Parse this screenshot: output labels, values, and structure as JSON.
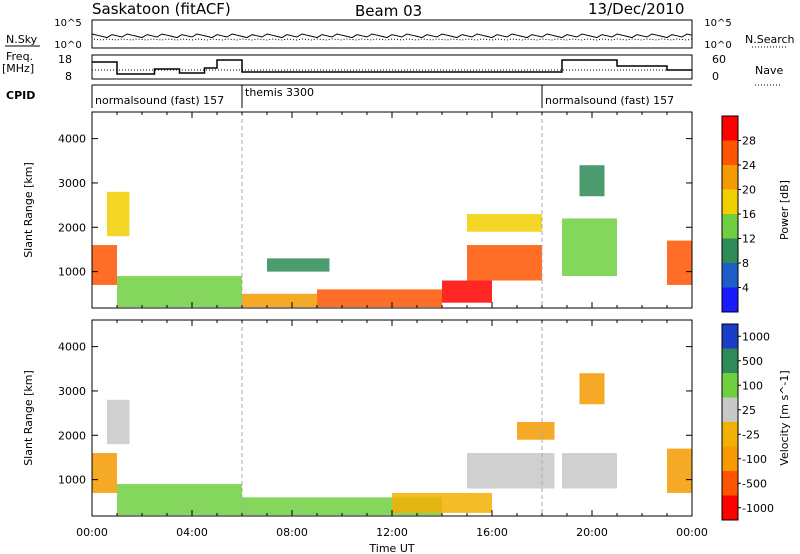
{
  "header": {
    "station": "Saskatoon (fitACF)",
    "beam": "Beam 03",
    "date": "13/Dec/2010"
  },
  "noise_panel": {
    "left_label": "N.Sky",
    "right_label": "N.Search",
    "left_ticks": [
      "10^5",
      "10^0"
    ],
    "right_ticks": [
      "10^5",
      "10^0"
    ]
  },
  "freq_panel": {
    "left_label_1": "Freq.",
    "left_label_2": "[MHz]",
    "right_label": "Nave",
    "left_ticks": [
      "18",
      "8"
    ],
    "right_ticks": [
      "60",
      "0"
    ]
  },
  "cpid": {
    "label": "CPID",
    "segments": [
      {
        "start_hour": 0.0,
        "end_hour": 6.0,
        "text": "normalsound (fast) 157"
      },
      {
        "start_hour": 6.0,
        "end_hour": 18.0,
        "text": "themis 3300"
      },
      {
        "start_hour": 18.0,
        "end_hour": 24.0,
        "text": "normalsound (fast) 157"
      }
    ]
  },
  "chart_data": [
    {
      "type": "heatmap",
      "quantity": "power",
      "ylabel": "Slant Range [km]",
      "xlabel": "Time UT",
      "xlim_hours": [
        0,
        24
      ],
      "x_tick_labels": [
        "00:00",
        "04:00",
        "08:00",
        "12:00",
        "16:00",
        "20:00",
        "00:00"
      ],
      "ylim_km": [
        180,
        4600
      ],
      "y_ticks": [
        1000,
        2000,
        3000,
        4000
      ],
      "colorbar_label": "Power [dB]",
      "colorbar_ticks": [
        "4",
        "8",
        "12",
        "16",
        "20",
        "24",
        "28"
      ],
      "colors": [
        "#1a1aff",
        "#1f5ec9",
        "#2e8b57",
        "#6fcf40",
        "#f2d000",
        "#f59a00",
        "#ff5500",
        "#ff0000"
      ],
      "regions": [
        {
          "t0": 0.0,
          "t1": 1.0,
          "r0": 700,
          "r1": 1600,
          "level": 6
        },
        {
          "t0": 0.6,
          "t1": 1.5,
          "r0": 1800,
          "r1": 2800,
          "level": 4
        },
        {
          "t0": 1.0,
          "t1": 6.0,
          "r0": 200,
          "r1": 900,
          "level": 3
        },
        {
          "t0": 6.0,
          "t1": 9.0,
          "r0": 200,
          "r1": 500,
          "level": 5
        },
        {
          "t0": 7.0,
          "t1": 9.5,
          "r0": 1000,
          "r1": 1300,
          "level": 2
        },
        {
          "t0": 9.0,
          "t1": 14.0,
          "r0": 200,
          "r1": 600,
          "level": 6
        },
        {
          "t0": 14.0,
          "t1": 16.0,
          "r0": 300,
          "r1": 800,
          "level": 7
        },
        {
          "t0": 15.0,
          "t1": 18.0,
          "r0": 800,
          "r1": 1600,
          "level": 6
        },
        {
          "t0": 15.0,
          "t1": 18.0,
          "r0": 1900,
          "r1": 2300,
          "level": 4
        },
        {
          "t0": 18.8,
          "t1": 21.0,
          "r0": 900,
          "r1": 2200,
          "level": 3
        },
        {
          "t0": 19.5,
          "t1": 20.5,
          "r0": 2700,
          "r1": 3400,
          "level": 2
        },
        {
          "t0": 23.0,
          "t1": 24.0,
          "r0": 700,
          "r1": 1700,
          "level": 6
        }
      ]
    },
    {
      "type": "heatmap",
      "quantity": "velocity",
      "ylabel": "Slant Range [km]",
      "xlabel": "Time UT",
      "xlim_hours": [
        0,
        24
      ],
      "x_tick_labels": [
        "00:00",
        "04:00",
        "08:00",
        "12:00",
        "16:00",
        "20:00",
        "00:00"
      ],
      "ylim_km": [
        180,
        4600
      ],
      "y_ticks": [
        1000,
        2000,
        3000,
        4000
      ],
      "colorbar_label": "Velocity [m s^-1]",
      "colorbar_ticks": [
        "1000",
        "500",
        "100",
        "25",
        "-25",
        "-100",
        "-500",
        "-1000"
      ],
      "colors": [
        "#1a3ec8",
        "#2e8b57",
        "#6fcf40",
        "#c8c8c8",
        "#f2b000",
        "#f59a00",
        "#ff5500",
        "#ff0000"
      ],
      "regions": [
        {
          "t0": 0.0,
          "t1": 1.0,
          "r0": 700,
          "r1": 1600,
          "level": 5
        },
        {
          "t0": 0.6,
          "t1": 1.5,
          "r0": 1800,
          "r1": 2800,
          "level": 3
        },
        {
          "t0": 1.0,
          "t1": 6.0,
          "r0": 200,
          "r1": 900,
          "level": 2
        },
        {
          "t0": 6.0,
          "t1": 14.0,
          "r0": 200,
          "r1": 600,
          "level": 2
        },
        {
          "t0": 12.0,
          "t1": 16.0,
          "r0": 250,
          "r1": 700,
          "level": 4
        },
        {
          "t0": 15.0,
          "t1": 18.5,
          "r0": 800,
          "r1": 1600,
          "level": 3
        },
        {
          "t0": 17.0,
          "t1": 18.5,
          "r0": 1900,
          "r1": 2300,
          "level": 5
        },
        {
          "t0": 18.8,
          "t1": 21.0,
          "r0": 800,
          "r1": 1600,
          "level": 3
        },
        {
          "t0": 19.5,
          "t1": 20.5,
          "r0": 2700,
          "r1": 3400,
          "level": 5
        },
        {
          "t0": 23.0,
          "t1": 24.0,
          "r0": 700,
          "r1": 1700,
          "level": 5
        }
      ]
    }
  ]
}
